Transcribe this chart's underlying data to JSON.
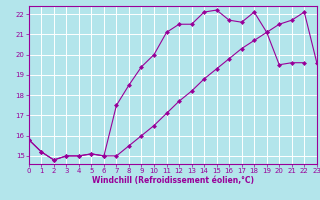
{
  "xlabel": "Windchill (Refroidissement éolien,°C)",
  "upper_x": [
    0,
    1,
    2,
    3,
    4,
    5,
    6,
    7,
    8,
    9,
    10,
    11,
    12,
    13,
    14,
    15,
    16,
    17,
    18,
    19,
    20,
    21,
    22
  ],
  "upper_y": [
    15.8,
    15.2,
    14.8,
    15.0,
    15.0,
    15.1,
    15.0,
    17.5,
    18.5,
    19.4,
    20.0,
    21.1,
    21.5,
    21.5,
    22.1,
    22.2,
    21.7,
    21.6,
    22.1,
    21.1,
    19.5,
    19.6,
    19.6
  ],
  "lower_x": [
    0,
    1,
    2,
    3,
    4,
    5,
    6,
    7,
    8,
    9,
    10,
    11,
    12,
    13,
    14,
    15,
    16,
    17,
    18,
    19,
    20,
    21,
    22,
    23
  ],
  "lower_y": [
    15.8,
    15.2,
    14.8,
    15.0,
    15.0,
    15.1,
    15.0,
    15.0,
    15.5,
    16.0,
    16.5,
    17.1,
    17.7,
    18.2,
    18.8,
    19.3,
    19.8,
    20.3,
    20.7,
    21.1,
    21.5,
    21.7,
    22.1,
    19.6
  ],
  "line_color": "#990099",
  "background_color": "#b3e5eb",
  "grid_color": "#ffffff",
  "xlim": [
    0,
    23
  ],
  "ylim": [
    14.6,
    22.4
  ],
  "yticks": [
    15,
    16,
    17,
    18,
    19,
    20,
    21,
    22
  ],
  "xticks": [
    0,
    1,
    2,
    3,
    4,
    5,
    6,
    7,
    8,
    9,
    10,
    11,
    12,
    13,
    14,
    15,
    16,
    17,
    18,
    19,
    20,
    21,
    22,
    23
  ],
  "marker": "D",
  "markersize": 2.0,
  "linewidth": 0.8,
  "tick_fontsize": 5,
  "xlabel_fontsize": 5.5
}
